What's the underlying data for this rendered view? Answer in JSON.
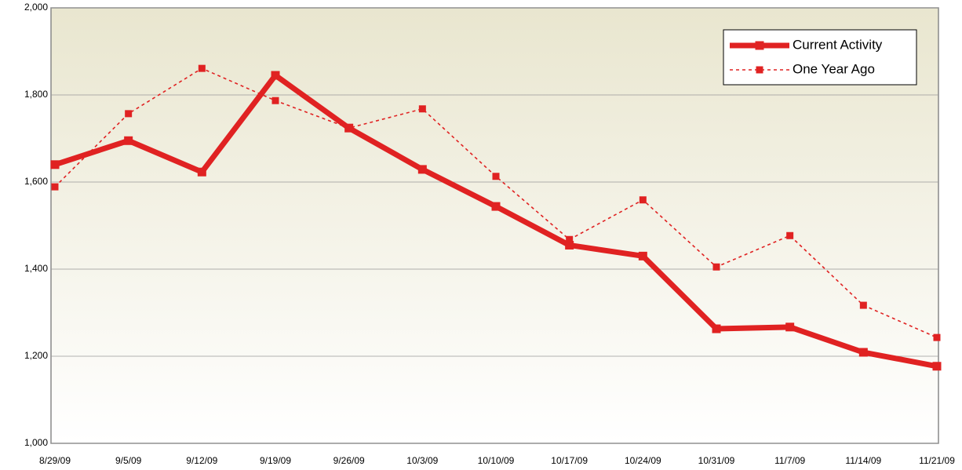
{
  "chart_data": {
    "type": "line",
    "categories": [
      "8/29/09",
      "9/5/09",
      "9/12/09",
      "9/19/09",
      "9/26/09",
      "10/3/09",
      "10/10/09",
      "10/17/09",
      "10/24/09",
      "10/31/09",
      "11/7/09",
      "11/14/09",
      "11/21/09"
    ],
    "series": [
      {
        "name": "Current Activity",
        "color": "#e02222",
        "values": [
          1640,
          1695,
          1623,
          1845,
          1724,
          1629,
          1544,
          1455,
          1430,
          1263,
          1267,
          1209,
          1177
        ]
      },
      {
        "name": "One Year Ago",
        "color": "#e02222",
        "values": [
          1589,
          1757,
          1861,
          1787,
          1724,
          1768,
          1613,
          1468,
          1559,
          1405,
          1477,
          1317,
          1243
        ]
      }
    ],
    "ylim": [
      1000,
      2000
    ],
    "yticks": [
      {
        "value": 1000,
        "label": "1,000"
      },
      {
        "value": 1200,
        "label": "1,200"
      },
      {
        "value": 1400,
        "label": "1,400"
      },
      {
        "value": 1600,
        "label": "1,600"
      },
      {
        "value": 1800,
        "label": "1,800"
      },
      {
        "value": 2000,
        "label": "2,000"
      }
    ],
    "grid": true,
    "legend": "top-right"
  }
}
